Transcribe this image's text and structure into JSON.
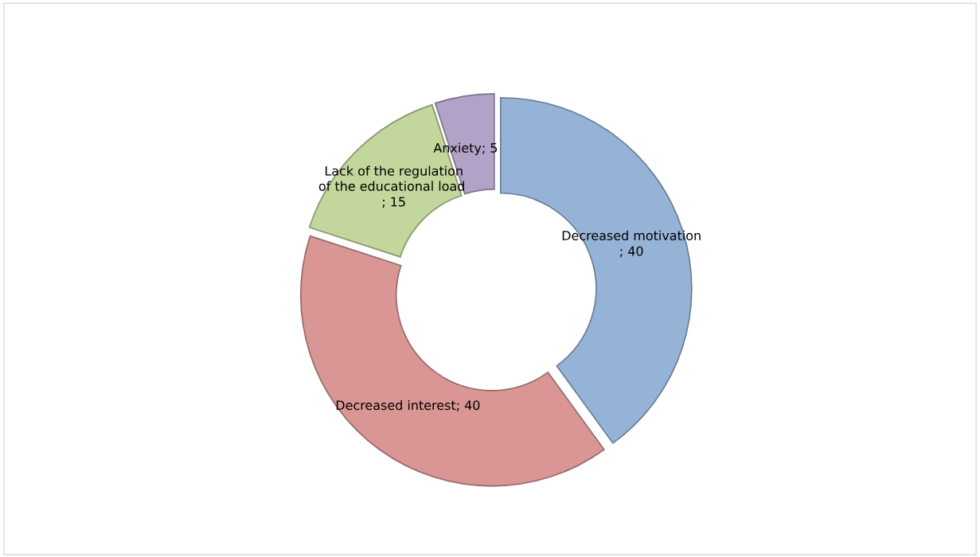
{
  "chart_data": {
    "type": "donut",
    "categories": [
      "Decreased motivation",
      "Decreased interest",
      "Lack of the regulation of the educational load ",
      "Anxiety"
    ],
    "values": [
      40,
      40,
      15,
      5
    ],
    "colors": [
      "#95b3d7",
      "#d99694",
      "#c3d69b",
      "#b3a2c7"
    ],
    "value_labels": [
      "; 40",
      "; 40",
      "; 15",
      "; 5"
    ],
    "legend": false
  }
}
